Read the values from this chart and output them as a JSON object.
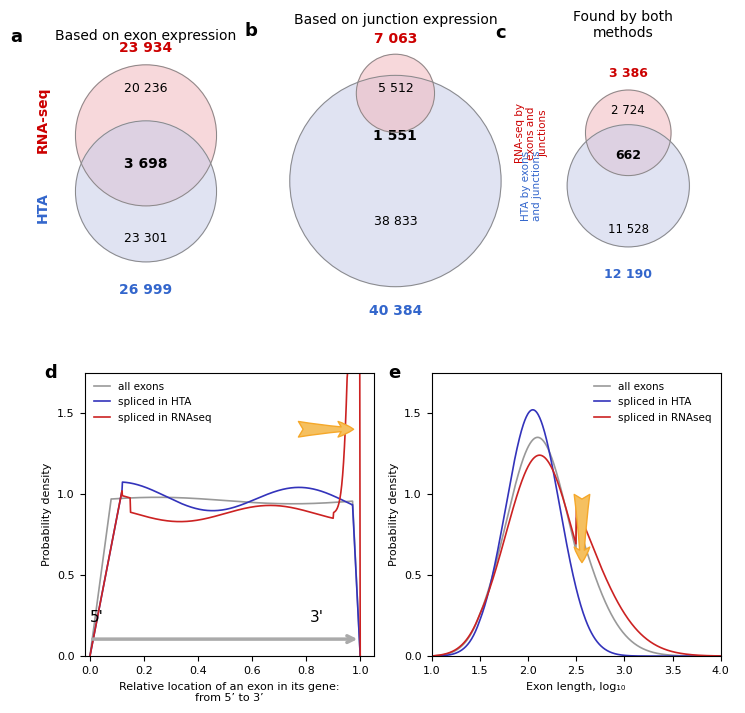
{
  "panel_a": {
    "title": "Based on exon expression",
    "rna_label": "RNA-seq",
    "hta_label": "HTA",
    "rna_only": "20 236",
    "hta_only": "23 301",
    "overlap": "3 698",
    "rna_total": "23 934",
    "hta_total": "26 999",
    "rna_color": "#f2b8be",
    "hta_color": "#c8cce8",
    "rna_label_color": "#cc0000",
    "hta_label_color": "#3366cc"
  },
  "panel_b": {
    "title": "Based on junction expression",
    "rna_only": "5 512",
    "hta_only": "38 833",
    "overlap": "1 551",
    "rna_total": "7 063",
    "hta_total": "40 384",
    "rna_color": "#f2b8be",
    "hta_color": "#c8cce8",
    "rna_total_color": "#cc0000",
    "hta_total_color": "#3366cc"
  },
  "panel_c": {
    "title": "Found by both\nmethods",
    "rna_label": "RNA-seq by\nexons and\njunctions",
    "hta_label": "HTA by exons\nand junctions",
    "rna_only": "2 724",
    "hta_only": "11 528",
    "overlap": "662",
    "rna_total": "3 386",
    "hta_total": "12 190",
    "rna_color": "#f2b8be",
    "hta_color": "#c8cce8",
    "rna_total_color": "#cc0000",
    "hta_total_color": "#3366cc"
  },
  "panel_d": {
    "xlabel": "Relative location of an exon in its gene:\nfrom 5’ to 3’",
    "ylabel": "Probability density",
    "xlim": [
      -0.02,
      1.05
    ],
    "ylim": [
      0.0,
      1.75
    ],
    "yticks": [
      0.0,
      0.5,
      1.0,
      1.5
    ],
    "xticks": [
      0.0,
      0.2,
      0.4,
      0.6,
      0.8,
      1.0
    ],
    "legend": [
      "all exons",
      "spliced in HTA",
      "spliced in RNAseq"
    ],
    "colors": [
      "#999999",
      "#3333bb",
      "#cc2222"
    ]
  },
  "panel_e": {
    "xlabel": "Exon length, log₁₀",
    "ylabel": "Probability density",
    "xlim": [
      1.0,
      4.0
    ],
    "ylim": [
      0.0,
      1.75
    ],
    "yticks": [
      0.0,
      0.5,
      1.0,
      1.5
    ],
    "xticks": [
      1.0,
      1.5,
      2.0,
      2.5,
      3.0,
      3.5,
      4.0
    ],
    "legend": [
      "all exons",
      "spliced in HTA",
      "spliced in RNAseq"
    ],
    "colors": [
      "#999999",
      "#3333bb",
      "#cc2222"
    ]
  },
  "background_color": "#ffffff"
}
